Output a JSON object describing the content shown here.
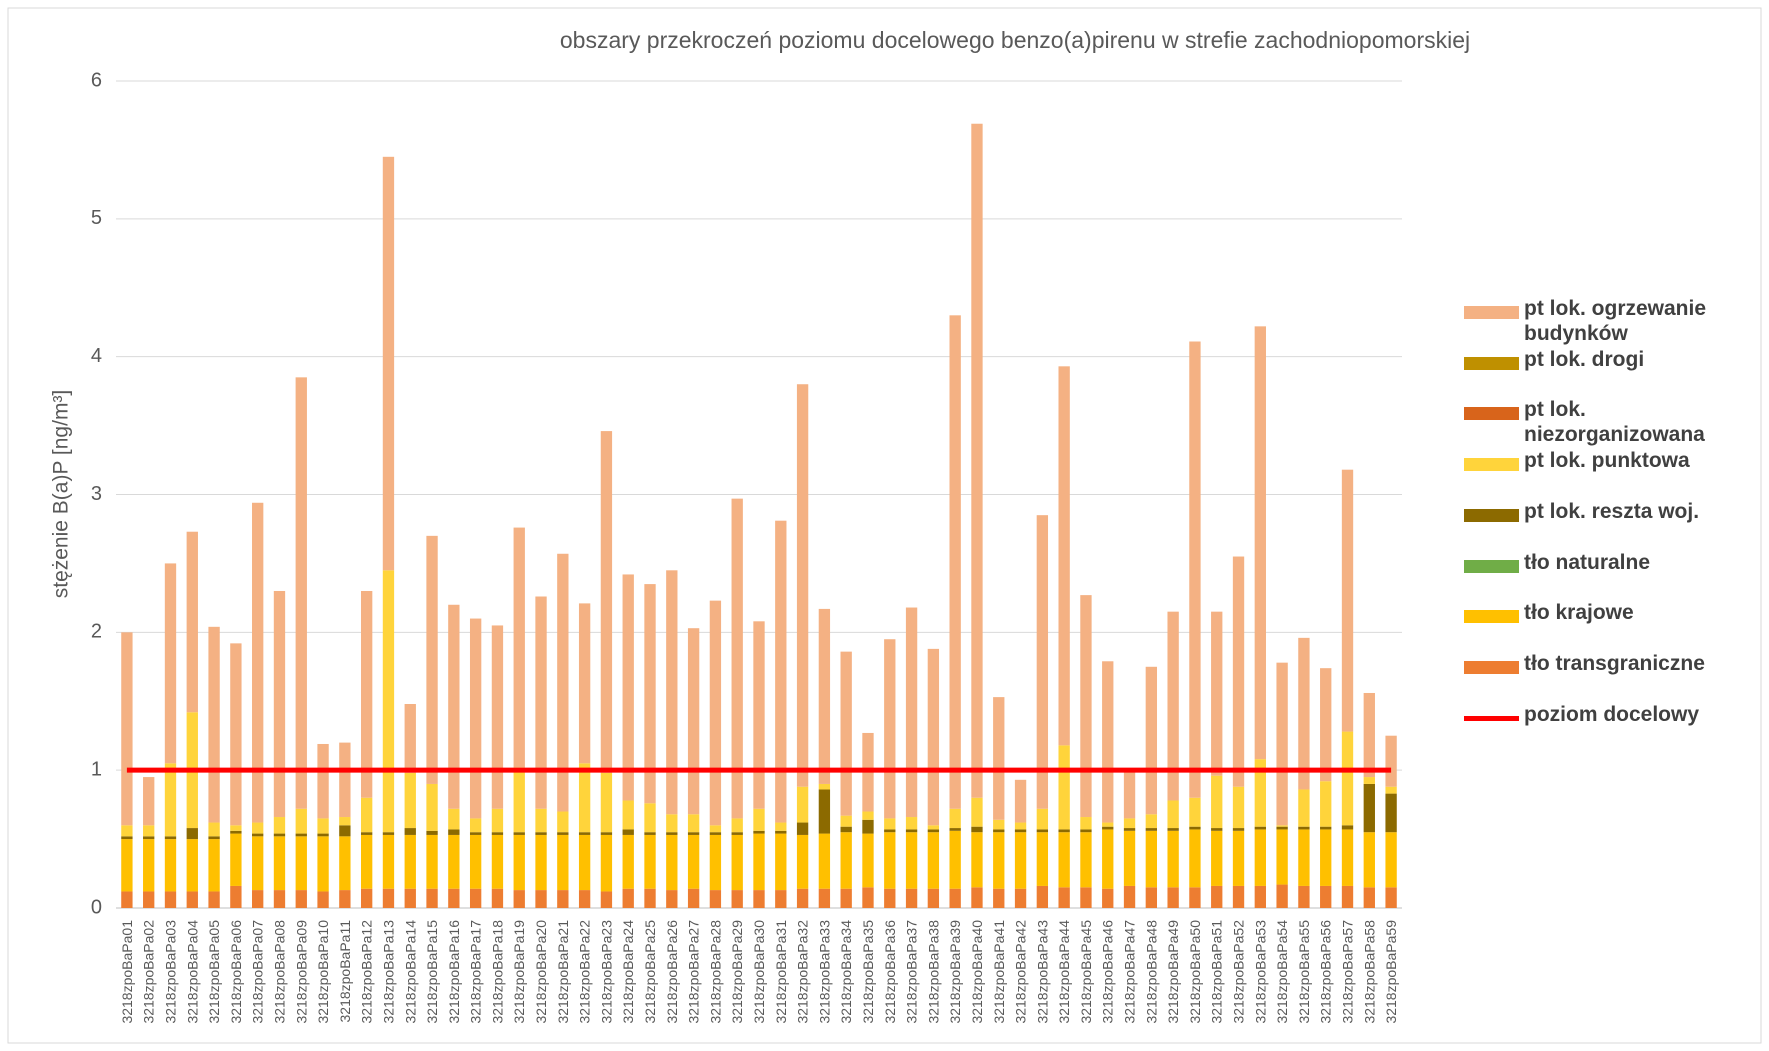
{
  "chart_data": {
    "type": "bar",
    "stacked": true,
    "title": "obszary przekroczeń poziomu docelowego benzo(a)pirenu w strefie zachodniopomorskiej",
    "y_label": "stężenie B(a)P [ng/m³]",
    "categories": [
      "3218zpoBaPa01",
      "3218zpoBaPa02",
      "3218zpoBaPa03",
      "3218zpoBaPa04",
      "3218zpoBaPa05",
      "3218zpoBaPa06",
      "3218zpoBaPa07",
      "3218zpoBaPa08",
      "3218zpoBaPa09",
      "3218zpoBaPa10",
      "3218zpoBaPa11",
      "3218zpoBaPa12",
      "3218zpoBaPa13",
      "3218zpoBaPa14",
      "3218zpoBaPa15",
      "3218zpoBaPa16",
      "3218zpoBaPa17",
      "3218zpoBaPa18",
      "3218zpoBaPa19",
      "3218zpoBaPa20",
      "3218zpoBaPa21",
      "3218zpoBaPa22",
      "3218zpoBaPa23",
      "3218zpoBaPa24",
      "3218zpoBaPa25",
      "3218zpoBaPa26",
      "3218zpoBaPa27",
      "3218zpoBaPa28",
      "3218zpoBaPa29",
      "3218zpoBaPa30",
      "3218zpoBaPa31",
      "3218zpoBaPa32",
      "3218zpoBaPa33",
      "3218zpoBaPa34",
      "3218zpoBaPa35",
      "3218zpoBaPa36",
      "3218zpoBaPa37",
      "3218zpoBaPa38",
      "3218zpoBaPa39",
      "3218zpoBaPa40",
      "3218zpoBaPa41",
      "3218zpoBaPa42",
      "3218zpoBaPa43",
      "3218zpoBaPa44",
      "3218zpoBaPa45",
      "3218zpoBaPa46",
      "3218zpoBaPa47",
      "3218zpoBaPa48",
      "3218zpoBaPa49",
      "3218zpoBaPa50",
      "3218zpoBaPa51",
      "3218zpoBaPa52",
      "3218zpoBaPa53",
      "3218zpoBaPa54",
      "3218zpoBaPa55",
      "3218zpoBaPa56",
      "3218zpoBaPa57",
      "3218zpoBaPa58",
      "3218zpoBaPa59"
    ],
    "series": [
      {
        "name": "pt lok. ogrzewanie budynków",
        "color": "#f4b183",
        "values": [
          1.4,
          0.35,
          1.45,
          1.31,
          1.42,
          1.32,
          2.32,
          1.64,
          3.13,
          0.54,
          0.54,
          1.5,
          3.0,
          0.5,
          1.8,
          1.48,
          1.45,
          1.33,
          1.74,
          1.54,
          1.87,
          1.16,
          2.48,
          1.64,
          1.59,
          1.77,
          1.35,
          1.63,
          2.32,
          1.36,
          2.19,
          2.92,
          1.27,
          1.19,
          0.57,
          1.3,
          1.52,
          1.28,
          3.58,
          4.89,
          0.89,
          0.31,
          2.13,
          2.75,
          1.61,
          1.17,
          0.35,
          1.07,
          1.37,
          3.31,
          1.19,
          1.67,
          3.14,
          1.18,
          1.1,
          0.82,
          1.9,
          0.61,
          0.37
        ]
      },
      {
        "name": "pt lok. drogi",
        "color": "#bf9000",
        "values": [
          0,
          0,
          0,
          0,
          0,
          0,
          0,
          0,
          0,
          0,
          0,
          0,
          0,
          0,
          0,
          0,
          0,
          0,
          0,
          0,
          0,
          0,
          0,
          0,
          0,
          0,
          0,
          0,
          0,
          0,
          0,
          0,
          0,
          0,
          0,
          0,
          0,
          0,
          0,
          0,
          0,
          0,
          0,
          0,
          0,
          0,
          0,
          0,
          0,
          0,
          0,
          0,
          0,
          0,
          0,
          0,
          0,
          0,
          0
        ]
      },
      {
        "name": "pt lok. niezorganizowana",
        "color": "#d8641b",
        "values": [
          0,
          0,
          0,
          0,
          0,
          0,
          0,
          0,
          0,
          0,
          0,
          0,
          0,
          0,
          0,
          0,
          0,
          0,
          0,
          0,
          0,
          0,
          0,
          0,
          0,
          0,
          0,
          0,
          0,
          0,
          0,
          0,
          0,
          0,
          0,
          0,
          0,
          0,
          0,
          0,
          0,
          0,
          0,
          0,
          0,
          0,
          0,
          0,
          0,
          0,
          0,
          0,
          0,
          0,
          0,
          0,
          0,
          0,
          0
        ]
      },
      {
        "name": "pt lok. punktowa",
        "color": "#ffd43b",
        "values": [
          0.08,
          0.08,
          0.53,
          0.84,
          0.1,
          0.04,
          0.08,
          0.12,
          0.18,
          0.11,
          0.06,
          0.25,
          1.9,
          0.4,
          0.34,
          0.15,
          0.1,
          0.17,
          0.47,
          0.17,
          0.15,
          0.5,
          0.43,
          0.21,
          0.21,
          0.13,
          0.13,
          0.05,
          0.1,
          0.16,
          0.06,
          0.26,
          0.04,
          0.08,
          0.06,
          0.08,
          0.09,
          0.03,
          0.14,
          0.21,
          0.07,
          0.05,
          0.15,
          0.61,
          0.09,
          0.03,
          0.07,
          0.1,
          0.2,
          0.21,
          0.38,
          0.3,
          0.49,
          0.01,
          0.27,
          0.33,
          0.68,
          0.05,
          0.05
        ]
      },
      {
        "name": "pt lok. reszta woj.",
        "color": "#8c6a00",
        "values": [
          0.02,
          0.02,
          0.02,
          0.08,
          0.02,
          0.02,
          0.02,
          0.02,
          0.02,
          0.02,
          0.08,
          0.02,
          0.02,
          0.05,
          0.03,
          0.04,
          0.02,
          0.02,
          0.02,
          0.02,
          0.02,
          0.02,
          0.02,
          0.04,
          0.02,
          0.02,
          0.02,
          0.02,
          0.02,
          0.02,
          0.02,
          0.09,
          0.32,
          0.04,
          0.1,
          0.02,
          0.02,
          0.02,
          0.02,
          0.04,
          0.02,
          0.02,
          0.02,
          0.02,
          0.02,
          0.02,
          0.02,
          0.02,
          0.02,
          0.02,
          0.02,
          0.02,
          0.02,
          0.02,
          0.02,
          0.02,
          0.03,
          0.35,
          0.28
        ]
      },
      {
        "name": "tło naturalne",
        "color": "#70ad47",
        "values": [
          0,
          0,
          0,
          0,
          0,
          0,
          0,
          0,
          0,
          0,
          0,
          0,
          0,
          0,
          0,
          0,
          0,
          0,
          0,
          0,
          0,
          0,
          0,
          0,
          0,
          0,
          0,
          0,
          0,
          0,
          0,
          0,
          0,
          0,
          0,
          0,
          0,
          0,
          0,
          0,
          0,
          0,
          0,
          0,
          0,
          0,
          0,
          0,
          0,
          0,
          0,
          0,
          0,
          0,
          0,
          0,
          0,
          0,
          0
        ]
      },
      {
        "name": "tło krajowe",
        "color": "#ffc000",
        "values": [
          0.38,
          0.38,
          0.38,
          0.38,
          0.38,
          0.38,
          0.39,
          0.39,
          0.39,
          0.4,
          0.39,
          0.39,
          0.39,
          0.39,
          0.39,
          0.39,
          0.39,
          0.39,
          0.4,
          0.4,
          0.4,
          0.4,
          0.41,
          0.39,
          0.39,
          0.4,
          0.39,
          0.4,
          0.4,
          0.41,
          0.41,
          0.39,
          0.4,
          0.41,
          0.39,
          0.41,
          0.41,
          0.41,
          0.42,
          0.4,
          0.41,
          0.41,
          0.39,
          0.4,
          0.4,
          0.43,
          0.4,
          0.41,
          0.41,
          0.42,
          0.4,
          0.4,
          0.41,
          0.4,
          0.41,
          0.41,
          0.41,
          0.4,
          0.4
        ]
      },
      {
        "name": "tło transgraniczne",
        "color": "#ed7d31",
        "values": [
          0.12,
          0.12,
          0.12,
          0.12,
          0.12,
          0.16,
          0.13,
          0.13,
          0.13,
          0.12,
          0.13,
          0.14,
          0.14,
          0.14,
          0.14,
          0.14,
          0.14,
          0.14,
          0.13,
          0.13,
          0.13,
          0.13,
          0.12,
          0.14,
          0.14,
          0.13,
          0.14,
          0.13,
          0.13,
          0.13,
          0.13,
          0.14,
          0.14,
          0.14,
          0.15,
          0.14,
          0.14,
          0.14,
          0.14,
          0.15,
          0.14,
          0.14,
          0.16,
          0.15,
          0.15,
          0.14,
          0.16,
          0.15,
          0.15,
          0.15,
          0.16,
          0.16,
          0.16,
          0.17,
          0.16,
          0.16,
          0.16,
          0.15,
          0.15
        ]
      },
      {
        "name": "poziom docelowy",
        "color": "#ff0000",
        "type": "line",
        "values": [
          1,
          1,
          1,
          1,
          1,
          1,
          1,
          1,
          1,
          1,
          1,
          1,
          1,
          1,
          1,
          1,
          1,
          1,
          1,
          1,
          1,
          1,
          1,
          1,
          1,
          1,
          1,
          1,
          1,
          1,
          1,
          1,
          1,
          1,
          1,
          1,
          1,
          1,
          1,
          1,
          1,
          1,
          1,
          1,
          1,
          1,
          1,
          1,
          1,
          1,
          1,
          1,
          1,
          1,
          1,
          1,
          1,
          1,
          1
        ]
      }
    ],
    "ylim": [
      0,
      6
    ],
    "yticks": [
      0,
      1,
      2,
      3,
      4,
      5,
      6
    ],
    "grid": true,
    "legend": "right"
  }
}
